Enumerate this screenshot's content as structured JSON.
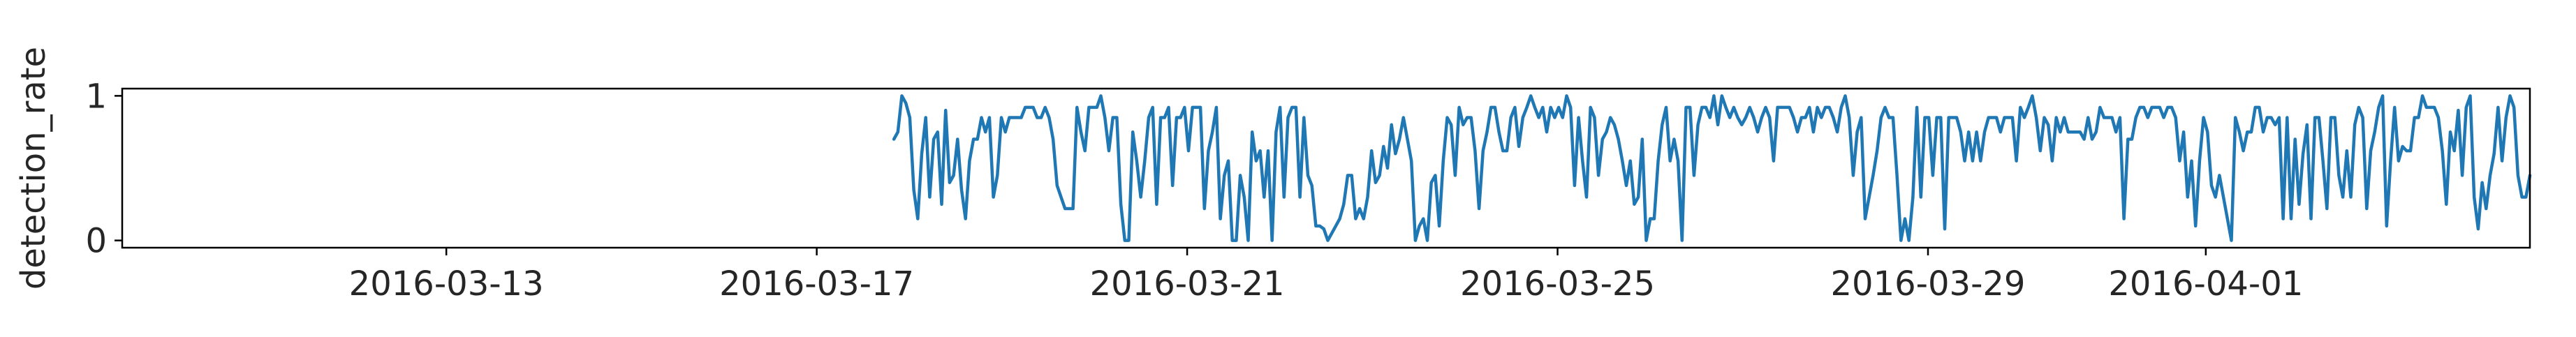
{
  "chart_data": {
    "type": "line",
    "title": "",
    "xlabel": "",
    "ylabel": "detection_rate",
    "xlim": [
      "2016-03-09T12:00",
      "2016-04-04T12:00"
    ],
    "ylim": [
      -0.05,
      1.05
    ],
    "x_ticks": [
      "2016-03-13",
      "2016-03-17",
      "2016-03-21",
      "2016-03-25",
      "2016-03-29",
      "2016-04-01"
    ],
    "y_ticks": [
      0,
      1
    ],
    "grid": false,
    "legend": "none",
    "line_color": "#1f77b4",
    "series": [
      {
        "x_start": "2016-03-17T20:00",
        "x_end": "2016-04-04T12:00",
        "values": [
          0.7,
          0.75,
          1.0,
          0.95,
          0.85,
          0.35,
          0.15,
          0.6,
          0.85,
          0.3,
          0.7,
          0.75,
          0.25,
          0.9,
          0.4,
          0.45,
          0.7,
          0.35,
          0.15,
          0.55,
          0.7,
          0.7,
          0.85,
          0.75,
          0.85,
          0.3,
          0.45,
          0.85,
          0.75,
          0.85,
          0.85,
          0.85,
          0.85,
          0.92,
          0.92,
          0.92,
          0.85,
          0.85,
          0.92,
          0.85,
          0.7,
          0.38,
          0.3,
          0.22,
          0.22,
          0.22,
          0.92,
          0.75,
          0.62,
          0.92,
          0.92,
          0.92,
          1.0,
          0.85,
          0.62,
          0.85,
          0.85,
          0.25,
          0.0,
          0.0,
          0.75,
          0.55,
          0.3,
          0.55,
          0.85,
          0.92,
          0.25,
          0.85,
          0.85,
          0.92,
          0.38,
          0.85,
          0.85,
          0.92,
          0.62,
          0.92,
          0.92,
          0.92,
          0.22,
          0.62,
          0.75,
          0.92,
          0.15,
          0.45,
          0.55,
          0.0,
          0.0,
          0.45,
          0.3,
          0.0,
          0.75,
          0.55,
          0.62,
          0.3,
          0.62,
          0.0,
          0.75,
          0.92,
          0.3,
          0.85,
          0.92,
          0.92,
          0.3,
          0.85,
          0.45,
          0.38,
          0.1,
          0.1,
          0.08,
          0.0,
          0.05,
          0.1,
          0.15,
          0.25,
          0.45,
          0.45,
          0.15,
          0.22,
          0.15,
          0.3,
          0.62,
          0.4,
          0.45,
          0.65,
          0.5,
          0.8,
          0.6,
          0.7,
          0.85,
          0.7,
          0.55,
          0.0,
          0.1,
          0.15,
          0.0,
          0.4,
          0.45,
          0.1,
          0.55,
          0.85,
          0.8,
          0.45,
          0.92,
          0.8,
          0.85,
          0.85,
          0.62,
          0.22,
          0.62,
          0.75,
          0.92,
          0.92,
          0.75,
          0.62,
          0.62,
          0.85,
          0.92,
          0.65,
          0.85,
          0.92,
          1.0,
          0.92,
          0.85,
          0.92,
          0.75,
          0.92,
          0.85,
          0.92,
          0.85,
          1.0,
          0.92,
          0.38,
          0.85,
          0.55,
          0.3,
          0.92,
          0.85,
          0.45,
          0.7,
          0.75,
          0.85,
          0.8,
          0.7,
          0.55,
          0.38,
          0.55,
          0.25,
          0.3,
          0.7,
          0.0,
          0.15,
          0.15,
          0.55,
          0.8,
          0.92,
          0.55,
          0.7,
          0.55,
          0.0,
          0.92,
          0.92,
          0.45,
          0.8,
          0.92,
          0.92,
          0.85,
          1.0,
          0.8,
          1.0,
          0.92,
          0.85,
          0.92,
          0.85,
          0.8,
          0.85,
          0.92,
          0.85,
          0.75,
          0.85,
          0.92,
          0.85,
          0.55,
          0.92,
          0.92,
          0.92,
          0.92,
          0.85,
          0.75,
          0.85,
          0.85,
          0.92,
          0.75,
          0.92,
          0.85,
          0.92,
          0.92,
          0.85,
          0.75,
          0.92,
          1.0,
          0.85,
          0.45,
          0.75,
          0.85,
          0.15,
          0.3,
          0.45,
          0.62,
          0.85,
          0.92,
          0.85,
          0.85,
          0.45,
          0.0,
          0.15,
          0.0,
          0.3,
          0.92,
          0.3,
          0.85,
          0.85,
          0.45,
          0.85,
          0.85,
          0.08,
          0.85,
          0.85,
          0.85,
          0.75,
          0.55,
          0.75,
          0.55,
          0.75,
          0.55,
          0.75,
          0.85,
          0.85,
          0.85,
          0.75,
          0.85,
          0.85,
          0.85,
          0.55,
          0.92,
          0.85,
          0.92,
          1.0,
          0.85,
          0.62,
          0.85,
          0.8,
          0.55,
          0.85,
          0.75,
          0.85,
          0.75,
          0.75,
          0.75,
          0.75,
          0.7,
          0.85,
          0.7,
          0.75,
          0.92,
          0.85,
          0.85,
          0.85,
          0.75,
          0.85,
          0.15,
          0.7,
          0.7,
          0.85,
          0.92,
          0.92,
          0.85,
          0.92,
          0.92,
          0.92,
          0.85,
          0.92,
          0.92,
          0.85,
          0.55,
          0.75,
          0.3,
          0.55,
          0.1,
          0.55,
          0.85,
          0.75,
          0.38,
          0.3,
          0.45,
          0.3,
          0.15,
          0.0,
          0.85,
          0.75,
          0.62,
          0.75,
          0.75,
          0.92,
          0.92,
          0.75,
          0.85,
          0.85,
          0.8,
          0.85,
          0.15,
          0.85,
          0.15,
          0.7,
          0.25,
          0.6,
          0.8,
          0.15,
          0.85,
          0.85,
          0.55,
          0.22,
          0.85,
          0.85,
          0.45,
          0.3,
          0.62,
          0.3,
          0.8,
          0.92,
          0.85,
          0.22,
          0.62,
          0.75,
          0.92,
          1.0,
          0.1,
          0.55,
          0.92,
          0.55,
          0.65,
          0.62,
          0.62,
          0.85,
          0.85,
          1.0,
          0.92,
          0.92,
          0.92,
          0.85,
          0.62,
          0.25,
          0.75,
          0.62,
          0.9,
          0.45,
          0.92,
          1.0,
          0.3,
          0.08,
          0.4,
          0.22,
          0.45,
          0.6,
          0.92,
          0.55,
          0.85,
          1.0,
          0.92,
          0.45,
          0.3,
          0.3,
          0.45
        ]
      }
    ]
  }
}
